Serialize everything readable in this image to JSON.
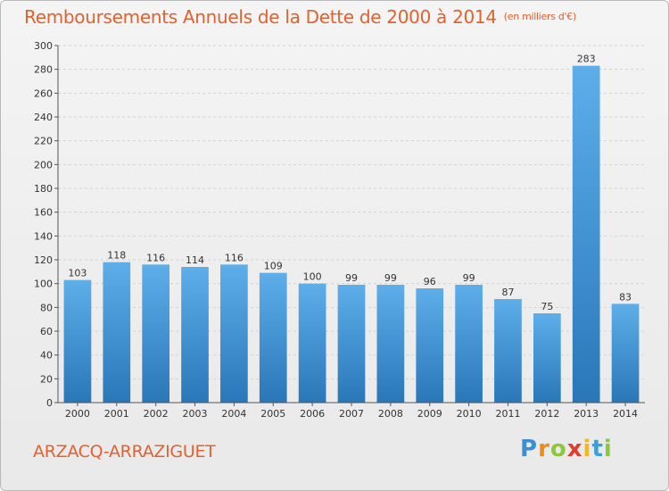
{
  "header": {
    "title": "Remboursements Annuels de la Dette de 2000 à 2014",
    "unit": "(en milliers d'€)"
  },
  "footer": {
    "commune": "ARZACQ-ARRAZIGUET",
    "logo": {
      "text": "Proxiti",
      "letters": [
        "P",
        "r",
        "o",
        "x",
        "i",
        "t",
        "i"
      ]
    }
  },
  "colors": {
    "title": "#e2612e",
    "bar_top": "#5eaeea",
    "bar_bottom": "#2a77b8"
  },
  "chart_data": {
    "type": "bar",
    "title": "Remboursements Annuels de la Dette de 2000 à 2014",
    "ylabel": "en milliers d'€",
    "xlabel": "",
    "categories": [
      "2000",
      "2001",
      "2002",
      "2003",
      "2004",
      "2005",
      "2006",
      "2007",
      "2008",
      "2009",
      "2010",
      "2011",
      "2012",
      "2013",
      "2014"
    ],
    "values": [
      103,
      118,
      116,
      114,
      116,
      109,
      100,
      99,
      99,
      96,
      99,
      87,
      75,
      283,
      83
    ],
    "ylim": [
      0,
      300
    ],
    "yticks": [
      0,
      20,
      40,
      60,
      80,
      100,
      120,
      140,
      160,
      180,
      200,
      220,
      240,
      260,
      280,
      300
    ],
    "grid": true
  }
}
